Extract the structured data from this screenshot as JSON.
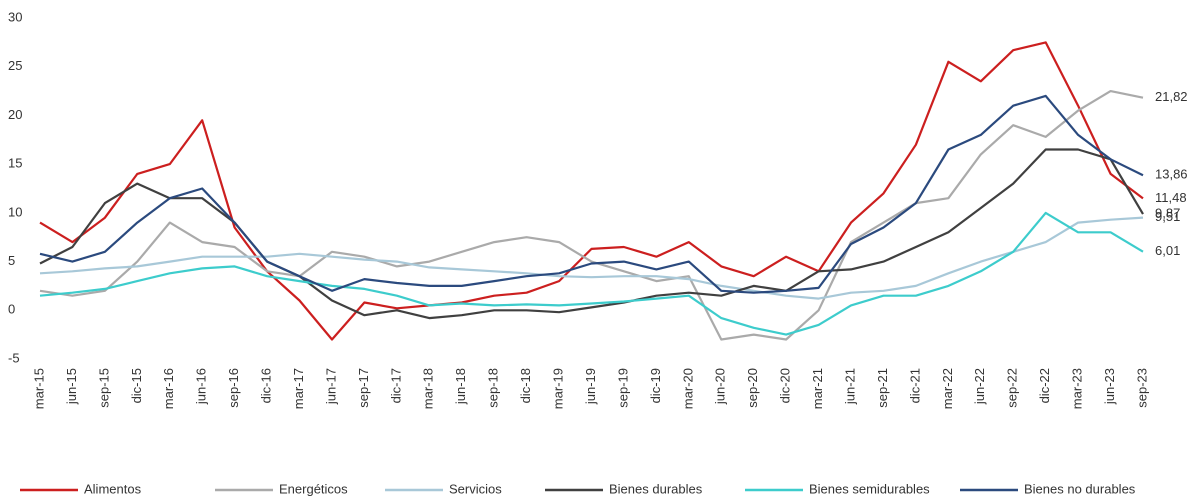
{
  "chart_data": {
    "type": "line",
    "categories": [
      "mar-15",
      "jun-15",
      "sep-15",
      "dic-15",
      "mar-16",
      "jun-16",
      "sep-16",
      "dic-16",
      "mar-17",
      "jun-17",
      "sep-17",
      "dic-17",
      "mar-18",
      "jun-18",
      "sep-18",
      "dic-18",
      "mar-19",
      "jun-19",
      "sep-19",
      "dic-19",
      "mar-20",
      "jun-20",
      "sep-20",
      "dic-20",
      "mar-21",
      "jun-21",
      "sep-21",
      "dic-21",
      "mar-22",
      "jun-22",
      "sep-22",
      "dic-22",
      "mar-23",
      "jun-23",
      "sep-23"
    ],
    "ylim": [
      -5,
      30
    ],
    "yticks": [
      -5,
      0,
      5,
      10,
      15,
      20,
      25,
      30
    ],
    "grid": false,
    "legend": "bottom",
    "series": [
      {
        "name": "Alimentos",
        "color": "#cc1f1f",
        "values": [
          9,
          7,
          9.5,
          14,
          15,
          19.5,
          8.5,
          4,
          1,
          -3,
          0.8,
          0.2,
          0.5,
          0.8,
          1.5,
          1.8,
          3,
          6.3,
          6.5,
          5.5,
          7,
          4.5,
          3.5,
          5.5,
          4,
          9,
          12,
          17,
          25.5,
          23.5,
          26.7,
          27.5,
          21,
          14,
          11.48
        ],
        "value_labels": [
          null,
          null,
          null,
          null,
          null,
          null,
          null,
          null,
          null,
          null,
          null,
          null,
          null,
          null,
          null,
          null,
          null,
          null,
          null,
          null,
          null,
          null,
          null,
          null,
          null,
          null,
          null,
          null,
          null,
          null,
          null,
          null,
          null,
          null,
          "11,48"
        ]
      },
      {
        "name": "Energéticos",
        "color": "#aaaaaa",
        "values": [
          2,
          1.5,
          2,
          5,
          9,
          7,
          6.5,
          4,
          3.5,
          6,
          5.5,
          4.5,
          5,
          6,
          7,
          7.5,
          7,
          5,
          4,
          3,
          3.5,
          -3,
          -2.5,
          -3,
          0,
          7,
          9,
          11,
          11.5,
          16,
          19,
          17.8,
          20.5,
          22.5,
          21.82
        ],
        "value_labels": [
          null,
          null,
          null,
          null,
          null,
          null,
          null,
          null,
          null,
          null,
          null,
          null,
          null,
          null,
          null,
          null,
          null,
          null,
          null,
          null,
          null,
          null,
          null,
          null,
          null,
          null,
          null,
          null,
          null,
          null,
          null,
          null,
          null,
          null,
          "21,82"
        ]
      },
      {
        "name": "Servicios",
        "color": "#a8c8d8",
        "values": [
          3.8,
          4,
          4.3,
          4.5,
          5,
          5.5,
          5.5,
          5.5,
          5.8,
          5.5,
          5.2,
          5,
          4.4,
          4.2,
          4,
          3.8,
          3.5,
          3.4,
          3.5,
          3.5,
          3.2,
          2.5,
          2,
          1.5,
          1.2,
          1.8,
          2,
          2.5,
          3.8,
          5,
          6,
          7,
          9,
          9.3,
          9.51
        ],
        "value_labels": [
          null,
          null,
          null,
          null,
          null,
          null,
          null,
          null,
          null,
          null,
          null,
          null,
          null,
          null,
          null,
          null,
          null,
          null,
          null,
          null,
          null,
          null,
          null,
          null,
          null,
          null,
          null,
          null,
          null,
          null,
          null,
          null,
          null,
          null,
          "9,51"
        ]
      },
      {
        "name": "Bienes durables",
        "color": "#404040",
        "values": [
          4.8,
          6.5,
          11,
          13,
          11.5,
          11.5,
          9,
          5,
          3.5,
          1,
          -0.5,
          0,
          -0.8,
          -0.5,
          0,
          0,
          -0.2,
          0.3,
          0.8,
          1.5,
          1.8,
          1.5,
          2.5,
          2,
          4,
          4.2,
          5,
          6.5,
          8,
          10.5,
          13,
          16.5,
          16.5,
          15.5,
          9.87
        ],
        "value_labels": [
          null,
          null,
          null,
          null,
          null,
          null,
          null,
          null,
          null,
          null,
          null,
          null,
          null,
          null,
          null,
          null,
          null,
          null,
          null,
          null,
          null,
          null,
          null,
          null,
          null,
          null,
          null,
          null,
          null,
          null,
          null,
          null,
          null,
          null,
          "9,87"
        ]
      },
      {
        "name": "Bienes semidurables",
        "color": "#3dcccc",
        "values": [
          1.5,
          1.8,
          2.2,
          3,
          3.8,
          4.3,
          4.5,
          3.5,
          3,
          2.5,
          2.2,
          1.5,
          0.5,
          0.7,
          0.5,
          0.6,
          0.5,
          0.7,
          0.9,
          1.2,
          1.5,
          -0.8,
          -1.8,
          -2.5,
          -1.5,
          0.5,
          1.5,
          1.5,
          2.5,
          4,
          6,
          10,
          8,
          8,
          6.01
        ],
        "value_labels": [
          null,
          null,
          null,
          null,
          null,
          null,
          null,
          null,
          null,
          null,
          null,
          null,
          null,
          null,
          null,
          null,
          null,
          null,
          null,
          null,
          null,
          null,
          null,
          null,
          null,
          null,
          null,
          null,
          null,
          null,
          null,
          null,
          null,
          null,
          "6,01"
        ]
      },
      {
        "name": "Bienes no durables",
        "color": "#2b4a7e",
        "values": [
          5.8,
          5,
          6,
          9,
          11.5,
          12.5,
          9,
          5,
          3.5,
          2,
          3.2,
          2.8,
          2.5,
          2.5,
          3,
          3.5,
          3.8,
          4.8,
          5,
          4.2,
          5,
          2,
          1.8,
          2,
          2.3,
          6.8,
          8.5,
          11,
          16.5,
          18,
          21,
          22,
          18,
          15.5,
          13.86
        ],
        "value_labels": [
          null,
          null,
          null,
          null,
          null,
          null,
          null,
          null,
          null,
          null,
          null,
          null,
          null,
          null,
          null,
          null,
          null,
          null,
          null,
          null,
          null,
          null,
          null,
          null,
          null,
          null,
          null,
          null,
          null,
          null,
          null,
          null,
          null,
          null,
          "13,86"
        ]
      }
    ]
  }
}
